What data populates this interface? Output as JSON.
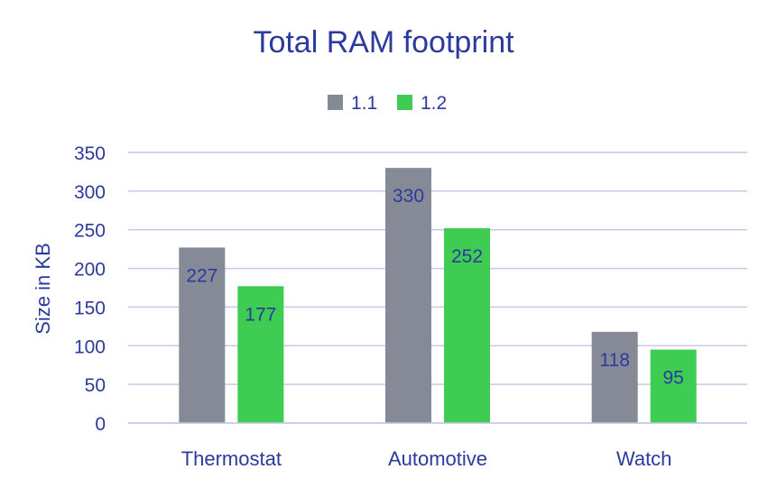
{
  "chart_data": {
    "type": "bar",
    "title": "Total RAM footprint",
    "xlabel": "",
    "ylabel": "Size in KB",
    "categories": [
      "Thermostat",
      "Automotive",
      "Watch"
    ],
    "series": [
      {
        "name": "1.1",
        "values": [
          227,
          330,
          118
        ],
        "color": "#868a97"
      },
      {
        "name": "1.2",
        "values": [
          177,
          252,
          95
        ],
        "color": "#3fcc52"
      }
    ],
    "ylim": [
      0,
      350
    ],
    "yticks": [
      "0",
      "50",
      "100",
      "150",
      "200",
      "250",
      "300",
      "350"
    ],
    "data_labels": true,
    "grid": true,
    "legend_position": "top-center",
    "text_color": "#2b3a9c",
    "grid_color": "#c6c9e8"
  }
}
